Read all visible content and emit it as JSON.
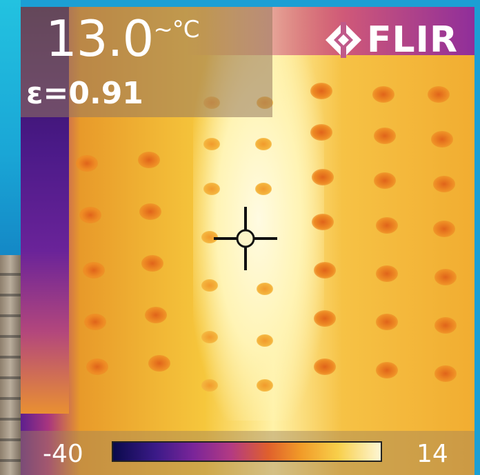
{
  "overlay": {
    "temperature": "13.0",
    "temperature_unit": "~°C",
    "emissivity": "ε=0.91"
  },
  "brand": {
    "name": "FLIR",
    "icon": "flir-diamond-icon"
  },
  "scale": {
    "min": "-40",
    "max": "14"
  },
  "crosshair": {
    "icon": "crosshair-icon"
  },
  "colors": {
    "frame": "#1c9fd4",
    "cold": "#2a0d55",
    "hot": "#fffbe2"
  }
}
